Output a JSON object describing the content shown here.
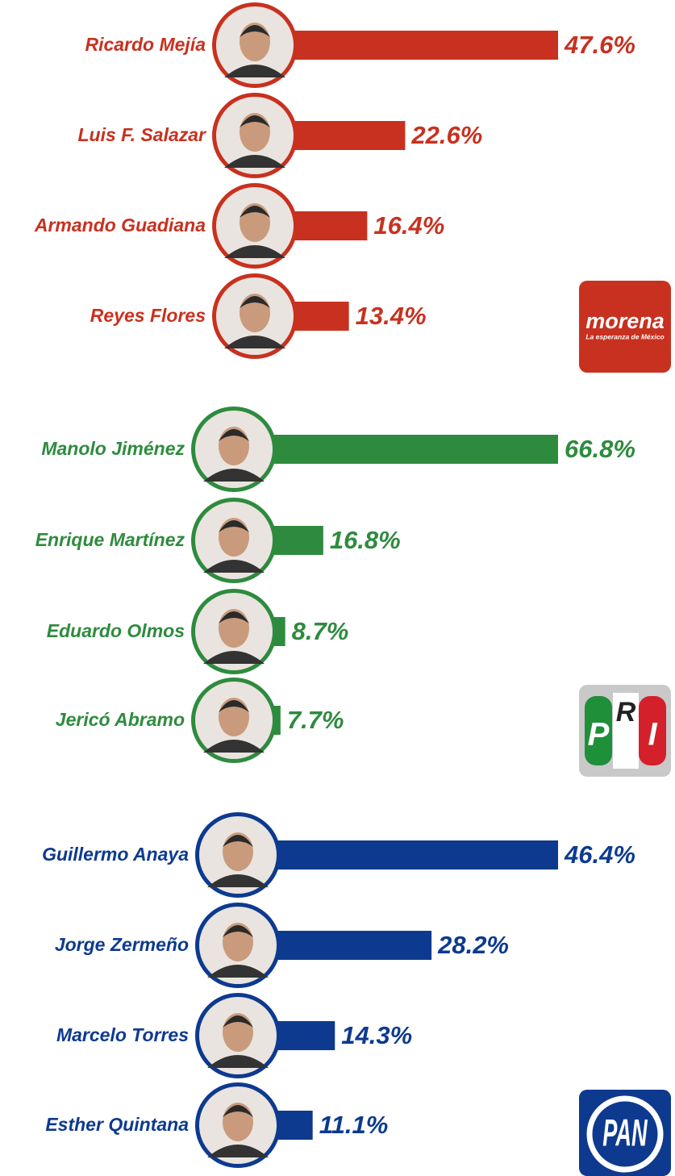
{
  "chart_data": [
    {
      "type": "bar",
      "color": "#c8311f",
      "categories": [
        "Ricardo Mejía",
        "Luis F. Salazar",
        "Armando Guadiana",
        "Reyes Flores"
      ],
      "values": [
        47.6,
        22.6,
        16.4,
        13.4
      ],
      "value_labels": [
        "47.6%",
        "22.6%",
        "16.4%",
        "13.4%"
      ],
      "logo": [
        "morena",
        "La esperanza de México"
      ]
    },
    {
      "type": "bar",
      "color": "#2e8b3e",
      "categories": [
        "Manolo Jiménez",
        "Enrique Martínez",
        "Eduardo Olmos",
        "Jericó Abramo"
      ],
      "values": [
        66.8,
        16.8,
        8.7,
        7.7
      ],
      "value_labels": [
        "66.8%",
        "16.8%",
        "8.7%",
        "7.7%"
      ],
      "logo": [
        "P",
        "R",
        "I"
      ]
    },
    {
      "type": "bar",
      "color": "#0d3a8f",
      "categories": [
        "Guillermo Anaya",
        "Jorge Zermeño",
        "Marcelo Torres",
        "Esther Quintana"
      ],
      "values": [
        46.4,
        28.2,
        14.3,
        11.1
      ],
      "value_labels": [
        "46.4%",
        "28.2%",
        "14.3%",
        "11.1%"
      ],
      "logo": [
        "PAN"
      ]
    }
  ]
}
